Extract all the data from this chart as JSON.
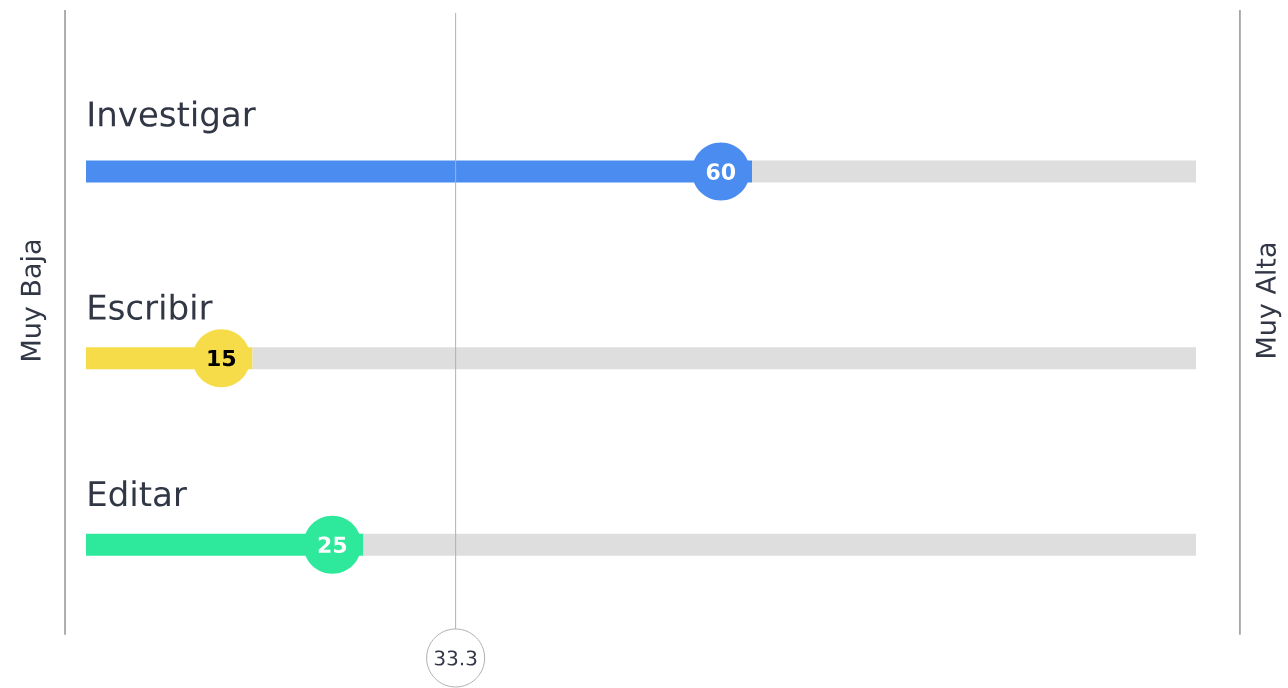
{
  "chart_data": {
    "type": "bar",
    "orientation": "horizontal",
    "stacked": true,
    "categories": [
      "Investigar",
      "Escribir",
      "Editar"
    ],
    "series": [
      {
        "colors": [
          "#4a8cf0",
          "#f7dc4a",
          "#2ee89c"
        ],
        "values": [
          60,
          15,
          25
        ],
        "value_labels": [
          "60",
          "15",
          "25"
        ]
      },
      {
        "color": "#dedede",
        "values": [
          40,
          85,
          75
        ]
      }
    ],
    "xlim": [
      0,
      100
    ],
    "tick_labels": "y",
    "ylabel": "Muy Baja",
    "y2label": "Muy Alta",
    "ref_lines": [
      {
        "axis": "x",
        "value": 33.3,
        "label": "33.3",
        "color": "#b0b0b0"
      }
    ]
  }
}
